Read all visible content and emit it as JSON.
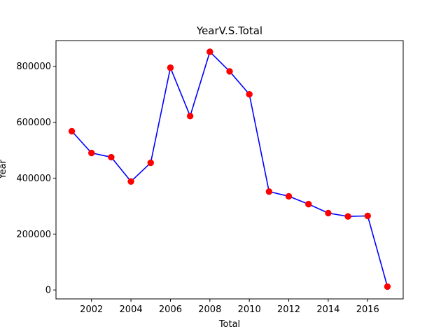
{
  "chart_data": {
    "type": "line",
    "title": "YearV.S.Total",
    "xlabel": "Total",
    "ylabel": "Year",
    "x": [
      2001,
      2002,
      2003,
      2004,
      2005,
      2006,
      2007,
      2008,
      2009,
      2010,
      2011,
      2012,
      2013,
      2014,
      2015,
      2016,
      2017
    ],
    "series": [
      {
        "values": [
          568000,
          490000,
          475000,
          388000,
          455000,
          795000,
          622000,
          852000,
          782000,
          700000,
          352000,
          335000,
          307000,
          275000,
          263000,
          265000,
          12000
        ],
        "line_color": "#0000ff",
        "marker_color": "#ff0000"
      }
    ],
    "xlim": [
      2000.2,
      2017.8
    ],
    "ylim": [
      -32000,
      892000
    ],
    "xticks": [
      2002,
      2004,
      2006,
      2008,
      2010,
      2012,
      2014,
      2016
    ],
    "yticks": [
      0,
      200000,
      400000,
      600000,
      800000
    ],
    "grid": false,
    "legend": "none"
  }
}
